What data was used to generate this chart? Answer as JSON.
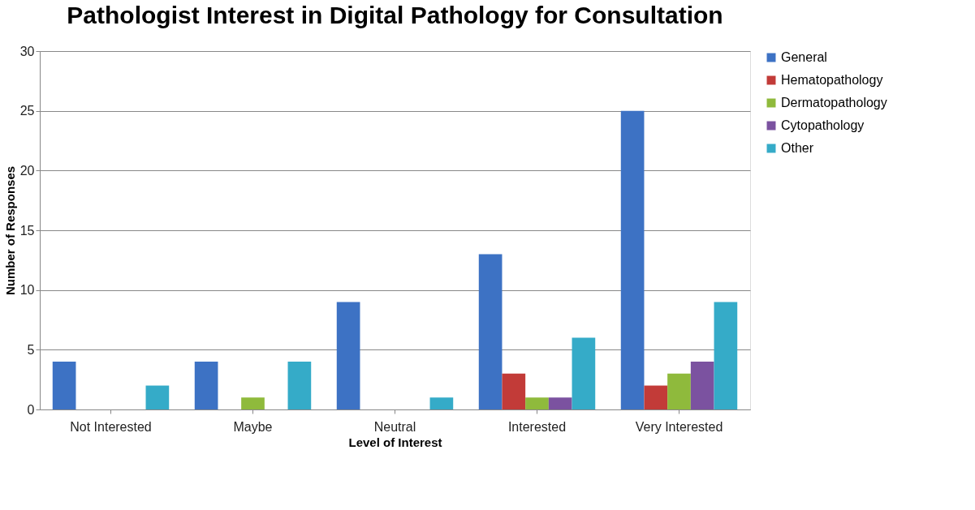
{
  "chart_data": {
    "type": "bar",
    "title": "Pathologist Interest in Digital Pathology for Consultation",
    "xlabel": "Level of Interest",
    "ylabel": "Number of Responses",
    "categories": [
      "Not Interested",
      "Maybe",
      "Neutral",
      "Interested",
      "Very Interested"
    ],
    "series": [
      {
        "name": "General",
        "color": "#3d72c4",
        "values": [
          4,
          4,
          9,
          13,
          25
        ]
      },
      {
        "name": "Hematopathology",
        "color": "#c23b38",
        "values": [
          0,
          0,
          0,
          3,
          2
        ]
      },
      {
        "name": "Dermatopathology",
        "color": "#8fba3c",
        "values": [
          0,
          1,
          0,
          1,
          3
        ]
      },
      {
        "name": "Cytopathology",
        "color": "#7b52a0",
        "values": [
          0,
          0,
          0,
          1,
          4
        ]
      },
      {
        "name": "Other",
        "color": "#35abc8",
        "values": [
          2,
          4,
          1,
          6,
          9
        ]
      }
    ],
    "ylim": [
      0,
      30
    ],
    "yticks": [
      0,
      5,
      10,
      15,
      20,
      25,
      30
    ],
    "grid": "y",
    "legend": "right"
  }
}
